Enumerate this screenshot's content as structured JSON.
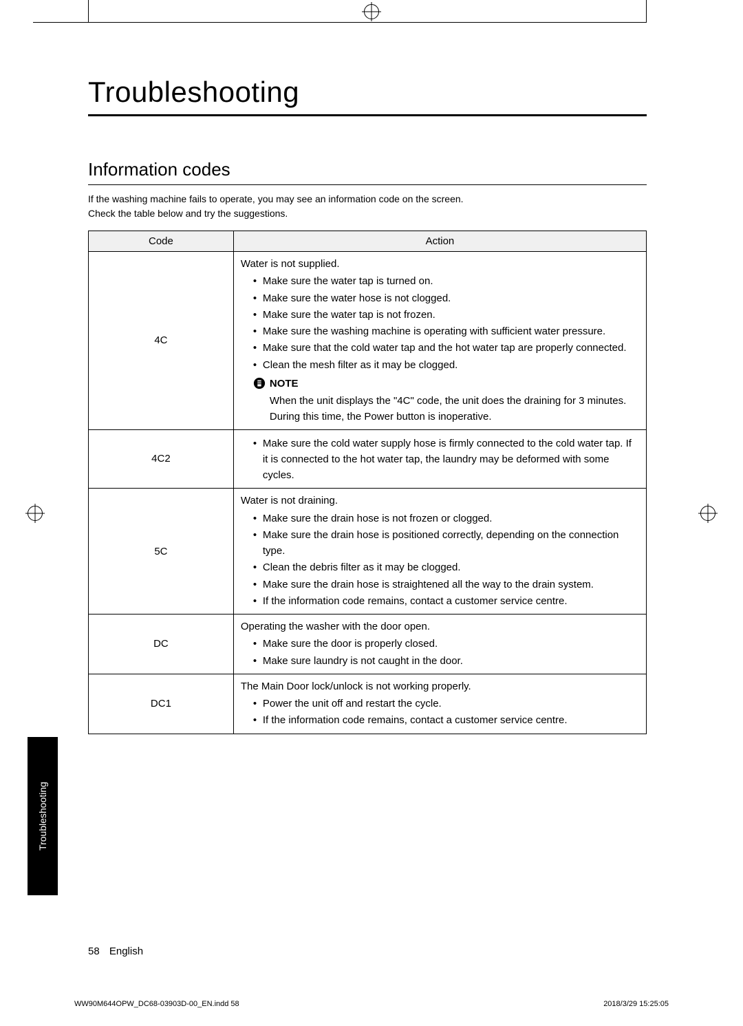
{
  "title": "Troubleshooting",
  "section": "Information codes",
  "intro_line1": "If the washing machine fails to operate, you may see an information code on the screen.",
  "intro_line2": "Check the table below and try the suggestions.",
  "sidebar_label": "Troubleshooting",
  "page_number": "58",
  "page_lang": "English",
  "meta_file": "WW90M644OPW_DC68-03903D-00_EN.indd   58",
  "meta_date": "2018/3/29   15:25:05",
  "table": {
    "headers": {
      "code": "Code",
      "action": "Action"
    },
    "rows": [
      {
        "code": "4C",
        "heading": "Water is not supplied.",
        "bullets": [
          "Make sure the water tap is turned on.",
          "Make sure the water hose is not clogged.",
          "Make sure the water tap is not frozen.",
          "Make sure the washing machine is operating with sufficient water pressure.",
          "Make sure that the cold water tap and the hot water tap are properly connected.",
          "Clean the mesh filter as it may be clogged."
        ],
        "note_label": "NOTE",
        "note_body": "When the unit displays the \"4C\" code, the unit does the draining for 3 minutes. During this time, the Power button is inoperative."
      },
      {
        "code": "4C2",
        "heading": "",
        "bullets": [
          "Make sure the cold water supply hose is firmly connected to the cold water tap. If it is connected to the hot water tap, the laundry may be deformed with some cycles."
        ]
      },
      {
        "code": "5C",
        "heading": "Water is not draining.",
        "bullets": [
          "Make sure the drain hose is not frozen or clogged.",
          "Make sure the drain hose is positioned correctly, depending on the connection type.",
          "Clean the debris filter as it may be clogged.",
          "Make sure the drain hose is straightened all the way to the drain system.",
          "If the information code remains, contact a customer service centre."
        ]
      },
      {
        "code": "DC",
        "heading": "Operating the washer with the door open.",
        "bullets": [
          "Make sure the door is properly closed.",
          "Make sure laundry is not caught in the door."
        ]
      },
      {
        "code": "DC1",
        "heading": "The Main Door lock/unlock is not working properly.",
        "bullets": [
          "Power the unit off and restart the cycle.",
          "If the information code remains, contact a customer service centre."
        ]
      }
    ]
  }
}
